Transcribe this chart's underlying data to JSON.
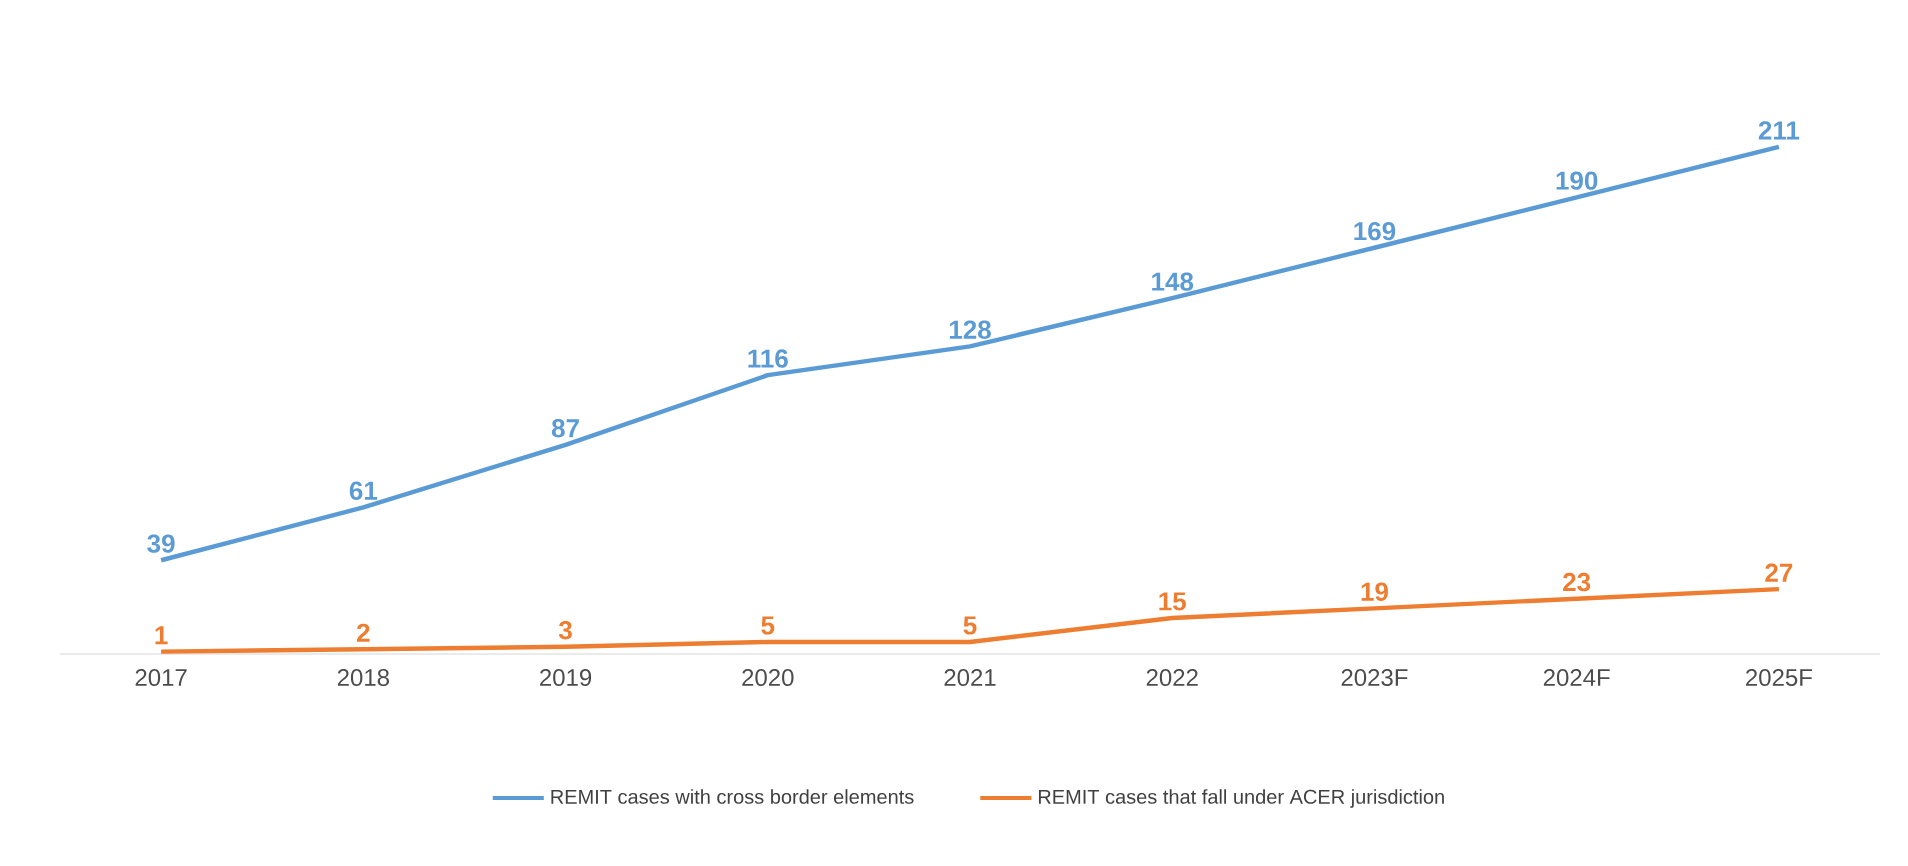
{
  "chart_data": {
    "type": "line",
    "categories": [
      "2017",
      "2018",
      "2019",
      "2020",
      "2021",
      "2022",
      "2023F",
      "2024F",
      "2025F"
    ],
    "series": [
      {
        "name": "REMIT cases with cross border elements",
        "color": "#5b9bd5",
        "values": [
          39,
          61,
          87,
          116,
          128,
          148,
          169,
          190,
          211
        ]
      },
      {
        "name": "REMIT cases that fall under ACER jurisdiction",
        "color": "#ed7d31",
        "values": [
          1,
          2,
          3,
          5,
          5,
          15,
          19,
          23,
          27
        ]
      }
    ],
    "data_labels": true,
    "legend": "bottom",
    "marker": "none"
  }
}
